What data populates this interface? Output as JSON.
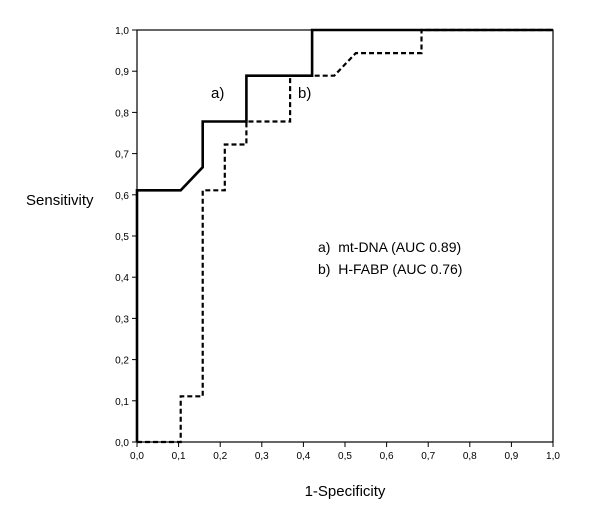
{
  "chart_data": {
    "type": "line",
    "xlabel": "1-Specificity",
    "ylabel": "Sensitivity",
    "xlim": [
      0,
      1
    ],
    "ylim": [
      0,
      1
    ],
    "grid": false,
    "xticks": [
      "0,0",
      "0,1",
      "0,2",
      "0,3",
      "0,4",
      "0,5",
      "0,6",
      "0,7",
      "0,8",
      "0,9",
      "1,0"
    ],
    "yticks": [
      "0,0",
      "0,1",
      "0,2",
      "0,3",
      "0,4",
      "0,5",
      "0,6",
      "0,7",
      "0,8",
      "0,9",
      "1,0"
    ],
    "legend": {
      "placement": "center-right",
      "entries": [
        "a)  mt-DNA (AUC 0.89)",
        "b)  H-FABP (AUC 0.76)"
      ]
    },
    "series": [
      {
        "name": "a)",
        "style": "solid",
        "x": [
          0.0,
          0.0,
          0.105,
          0.158,
          0.158,
          0.263,
          0.263,
          0.421,
          0.421,
          1.0
        ],
        "y": [
          0.0,
          0.611,
          0.611,
          0.667,
          0.778,
          0.778,
          0.889,
          0.889,
          1.0,
          1.0
        ]
      },
      {
        "name": "b)",
        "style": "dashed",
        "x": [
          0.0,
          0.105,
          0.105,
          0.158,
          0.158,
          0.211,
          0.211,
          0.263,
          0.263,
          0.368,
          0.368,
          0.474,
          0.526,
          0.684,
          0.684,
          1.0
        ],
        "y": [
          0.0,
          0.0,
          0.111,
          0.111,
          0.611,
          0.611,
          0.722,
          0.722,
          0.778,
          0.778,
          0.889,
          0.889,
          0.944,
          0.944,
          1.0,
          1.0
        ]
      }
    ]
  }
}
